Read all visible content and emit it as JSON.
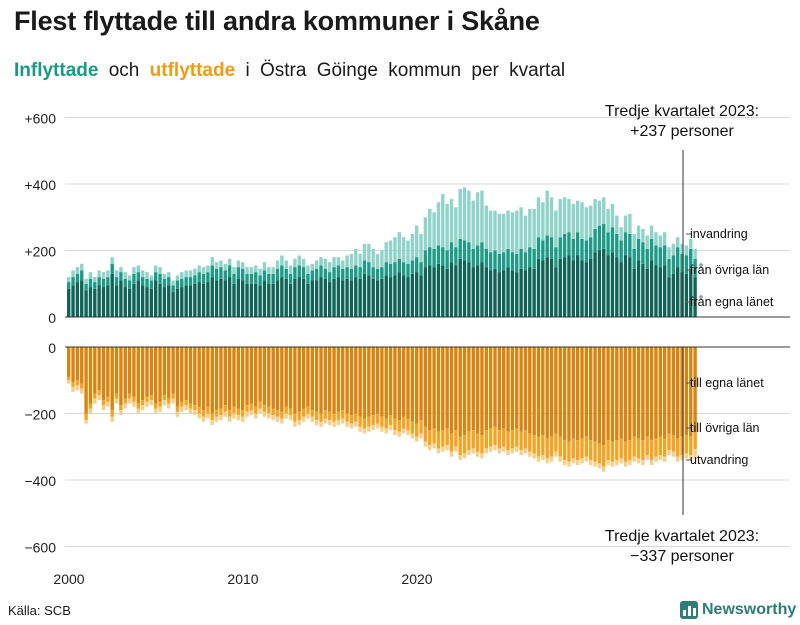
{
  "title": "Flest flyttade till andra kommuner i Skåne",
  "subtitle": {
    "in_word": "Inflyttade",
    "och": "och",
    "out_word": "utflyttade",
    "rest": [
      "i",
      "Östra",
      "Göinge",
      "kommun",
      "per",
      "kvartal"
    ]
  },
  "colors": {
    "in_own": "#0f6457",
    "in_other": "#1e9b86",
    "in_abroad": "#8fd3c9",
    "out_own": "#d9840f",
    "out_other": "#f6a321",
    "out_abroad": "#f8cf8a"
  },
  "source": "Källa: SCB",
  "brand": "Newsworthy",
  "chart_data": {
    "type": "bar",
    "stacked": true,
    "diverging": true,
    "title": "Flest flyttade till andra kommuner i Skåne",
    "x_start": "2000 Q1",
    "x_end": "2023 Q3",
    "x_ticks": [
      "2000",
      "2010",
      "2020"
    ],
    "y_ticks_top": [
      "+600",
      "+400",
      "+200",
      "0"
    ],
    "y_ticks_bottom": [
      "0",
      "−200",
      "−400",
      "−600"
    ],
    "ylim_top": [
      0,
      600
    ],
    "ylim_bottom": [
      -600,
      0
    ],
    "series_in": [
      {
        "name": "från egna länet",
        "values": [
          85,
          95,
          105,
          110,
          80,
          90,
          85,
          95,
          90,
          95,
          130,
          95,
          110,
          90,
          85,
          100,
          110,
          95,
          90,
          85,
          110,
          100,
          90,
          95,
          75,
          85,
          90,
          95,
          95,
          100,
          105,
          100,
          105,
          120,
          110,
          115,
          110,
          120,
          100,
          115,
          110,
          100,
          100,
          100,
          95,
          110,
          100,
          100,
          110,
          120,
          115,
          100,
          115,
          120,
          115,
          100,
          110,
          110,
          120,
          115,
          105,
          115,
          120,
          110,
          115,
          110,
          120,
          115,
          130,
          125,
          115,
          110,
          115,
          125,
          120,
          125,
          135,
          125,
          120,
          130,
          135,
          125,
          150,
          155,
          150,
          160,
          155,
          145,
          165,
          155,
          175,
          170,
          165,
          150,
          155,
          165,
          150,
          140,
          145,
          135,
          140,
          150,
          140,
          135,
          145,
          140,
          150,
          145,
          175,
          170,
          180,
          175,
          150,
          175,
          180,
          185,
          170,
          185,
          170,
          165,
          175,
          195,
          200,
          205,
          185,
          195,
          180,
          165,
          185,
          180,
          145,
          170,
          160,
          145,
          170,
          155,
          150,
          155,
          120,
          130,
          150,
          135,
          130,
          145,
          120
        ]
      },
      {
        "name": "från övriga län",
        "values": [
          20,
          25,
          25,
          30,
          20,
          25,
          20,
          25,
          25,
          25,
          30,
          25,
          25,
          25,
          25,
          30,
          25,
          25,
          25,
          25,
          25,
          30,
          25,
          25,
          20,
          25,
          25,
          25,
          25,
          25,
          30,
          30,
          30,
          35,
          35,
          35,
          30,
          35,
          30,
          35,
          35,
          30,
          30,
          35,
          30,
          30,
          30,
          30,
          35,
          35,
          30,
          30,
          35,
          35,
          35,
          30,
          30,
          35,
          35,
          30,
          30,
          35,
          35,
          35,
          35,
          35,
          35,
          35,
          40,
          40,
          35,
          35,
          35,
          40,
          40,
          40,
          40,
          40,
          40,
          40,
          45,
          40,
          50,
          55,
          55,
          55,
          55,
          55,
          60,
          55,
          60,
          60,
          60,
          55,
          60,
          60,
          55,
          55,
          55,
          55,
          55,
          55,
          55,
          55,
          60,
          55,
          60,
          60,
          65,
          60,
          65,
          65,
          60,
          65,
          70,
          70,
          65,
          70,
          65,
          65,
          65,
          70,
          75,
          75,
          70,
          75,
          70,
          65,
          70,
          70,
          60,
          65,
          65,
          60,
          65,
          60,
          60,
          60,
          55,
          55,
          60,
          55,
          55,
          60,
          55
        ]
      },
      {
        "name": "invandring",
        "values": [
          15,
          20,
          20,
          20,
          15,
          20,
          15,
          20,
          20,
          20,
          20,
          20,
          15,
          20,
          15,
          20,
          20,
          20,
          20,
          15,
          20,
          20,
          15,
          15,
          15,
          15,
          20,
          20,
          20,
          20,
          20,
          20,
          20,
          25,
          20,
          20,
          20,
          20,
          20,
          20,
          20,
          20,
          20,
          20,
          20,
          25,
          20,
          20,
          25,
          30,
          25,
          25,
          25,
          30,
          25,
          25,
          20,
          25,
          25,
          30,
          30,
          30,
          25,
          25,
          35,
          45,
          50,
          40,
          50,
          55,
          55,
          45,
          50,
          60,
          70,
          75,
          80,
          75,
          70,
          80,
          95,
          85,
          100,
          115,
          110,
          130,
          160,
          140,
          130,
          120,
          150,
          160,
          155,
          145,
          160,
          155,
          130,
          125,
          120,
          120,
          115,
          115,
          120,
          130,
          125,
          110,
          115,
          120,
          120,
          115,
          135,
          120,
          110,
          115,
          110,
          100,
          105,
          95,
          110,
          100,
          95,
          90,
          75,
          80,
          70,
          70,
          55,
          40,
          50,
          60,
          45,
          40,
          40,
          40,
          40,
          40,
          35,
          40,
          35,
          35,
          30,
          30,
          30,
          30,
          30,
          50,
          62
        ]
      }
    ],
    "series_out": [
      {
        "name": "till egna länet",
        "values": [
          -90,
          -105,
          -100,
          -110,
          -200,
          -170,
          -140,
          -130,
          -160,
          -150,
          -190,
          -140,
          -175,
          -155,
          -140,
          -150,
          -170,
          -160,
          -150,
          -145,
          -170,
          -165,
          -145,
          -155,
          -140,
          -180,
          -165,
          -160,
          -170,
          -175,
          -180,
          -190,
          -180,
          -200,
          -190,
          -185,
          -175,
          -190,
          -180,
          -185,
          -190,
          -175,
          -170,
          -180,
          -165,
          -175,
          -180,
          -185,
          -190,
          -195,
          -180,
          -185,
          -200,
          -195,
          -185,
          -180,
          -190,
          -195,
          -200,
          -190,
          -195,
          -200,
          -195,
          -190,
          -200,
          -205,
          -200,
          -210,
          -215,
          -210,
          -205,
          -200,
          -210,
          -215,
          -205,
          -215,
          -220,
          -210,
          -215,
          -225,
          -230,
          -220,
          -240,
          -250,
          -245,
          -255,
          -250,
          -245,
          -260,
          -250,
          -270,
          -265,
          -255,
          -250,
          -260,
          -265,
          -250,
          -245,
          -240,
          -250,
          -245,
          -255,
          -250,
          -245,
          -255,
          -250,
          -260,
          -265,
          -270,
          -265,
          -275,
          -270,
          -260,
          -270,
          -280,
          -285,
          -275,
          -280,
          -275,
          -270,
          -280,
          -285,
          -290,
          -295,
          -280,
          -285,
          -280,
          -275,
          -285,
          -280,
          -270,
          -275,
          -280,
          -270,
          -280,
          -275,
          -270,
          -275,
          -260,
          -265,
          -275,
          -270,
          -265,
          -270,
          -255
        ]
      },
      {
        "name": "till övriga län",
        "values": [
          -10,
          -15,
          -15,
          -15,
          -20,
          -15,
          -15,
          -15,
          -15,
          -15,
          -20,
          -15,
          -15,
          -15,
          -15,
          -15,
          -15,
          -15,
          -15,
          -15,
          -15,
          -15,
          -15,
          -15,
          -15,
          -15,
          -15,
          -15,
          -15,
          -15,
          -20,
          -20,
          -20,
          -20,
          -20,
          -20,
          -20,
          -20,
          -20,
          -20,
          -20,
          -20,
          -20,
          -20,
          -20,
          -20,
          -20,
          -20,
          -20,
          -20,
          -20,
          -20,
          -25,
          -25,
          -25,
          -20,
          -20,
          -25,
          -25,
          -25,
          -25,
          -25,
          -25,
          -25,
          -25,
          -25,
          -25,
          -30,
          -30,
          -30,
          -30,
          -30,
          -30,
          -30,
          -30,
          -35,
          -35,
          -35,
          -35,
          -35,
          -40,
          -40,
          -45,
          -45,
          -45,
          -50,
          -50,
          -50,
          -55,
          -50,
          -55,
          -55,
          -55,
          -55,
          -55,
          -55,
          -55,
          -55,
          -55,
          -55,
          -55,
          -55,
          -55,
          -55,
          -55,
          -55,
          -55,
          -55,
          -60,
          -60,
          -60,
          -60,
          -55,
          -60,
          -60,
          -60,
          -60,
          -60,
          -60,
          -60,
          -60,
          -60,
          -60,
          -65,
          -60,
          -60,
          -60,
          -60,
          -60,
          -60,
          -60,
          -60,
          -60,
          -55,
          -60,
          -55,
          -55,
          -55,
          -50,
          -50,
          -55,
          -55,
          -55,
          -55,
          -52
        ]
      },
      {
        "name": "utvandring",
        "values": [
          -10,
          -15,
          -15,
          -15,
          -10,
          -15,
          -15,
          -15,
          -15,
          -15,
          -15,
          -15,
          -15,
          -15,
          -15,
          -15,
          -15,
          -15,
          -15,
          -15,
          -15,
          -15,
          -15,
          -15,
          -15,
          -15,
          -15,
          -15,
          -15,
          -15,
          -15,
          -15,
          -15,
          -15,
          -15,
          -15,
          -15,
          -15,
          -15,
          -15,
          -15,
          -15,
          -15,
          -15,
          -15,
          -15,
          -15,
          -15,
          -15,
          -15,
          -15,
          -15,
          -15,
          -15,
          -15,
          -15,
          -15,
          -15,
          -15,
          -15,
          -15,
          -15,
          -15,
          -15,
          -15,
          -15,
          -15,
          -15,
          -15,
          -15,
          -15,
          -15,
          -15,
          -15,
          -15,
          -15,
          -15,
          -15,
          -15,
          -15,
          -15,
          -15,
          -15,
          -15,
          -15,
          -15,
          -15,
          -15,
          -15,
          -15,
          -15,
          -15,
          -15,
          -15,
          -15,
          -15,
          -15,
          -15,
          -15,
          -15,
          -15,
          -15,
          -15,
          -15,
          -15,
          -15,
          -15,
          -15,
          -15,
          -15,
          -15,
          -15,
          -15,
          -15,
          -15,
          -15,
          -15,
          -15,
          -15,
          -15,
          -15,
          -15,
          -15,
          -15,
          -15,
          -15,
          -15,
          -15,
          -15,
          -15,
          -15,
          -15,
          -15,
          -15,
          -15,
          -15,
          -15,
          -15,
          -15,
          -15,
          -15,
          -15,
          -15,
          -15,
          -30
        ]
      }
    ],
    "series_labels": {
      "invandring": "invandring",
      "fran_ovriga": "från övriga län",
      "fran_egna": "från egna länet",
      "till_egna": "till egna länet",
      "till_ovriga": "till övriga län",
      "utvandring": "utvandring"
    },
    "annotation_top": {
      "line1": "Tredje kvartalet 2023:",
      "line2": "+237 personer",
      "value": 237
    },
    "annotation_bottom": {
      "line1": "Tredje kvartalet 2023:",
      "line2": "−337 personer",
      "value": -337
    }
  }
}
